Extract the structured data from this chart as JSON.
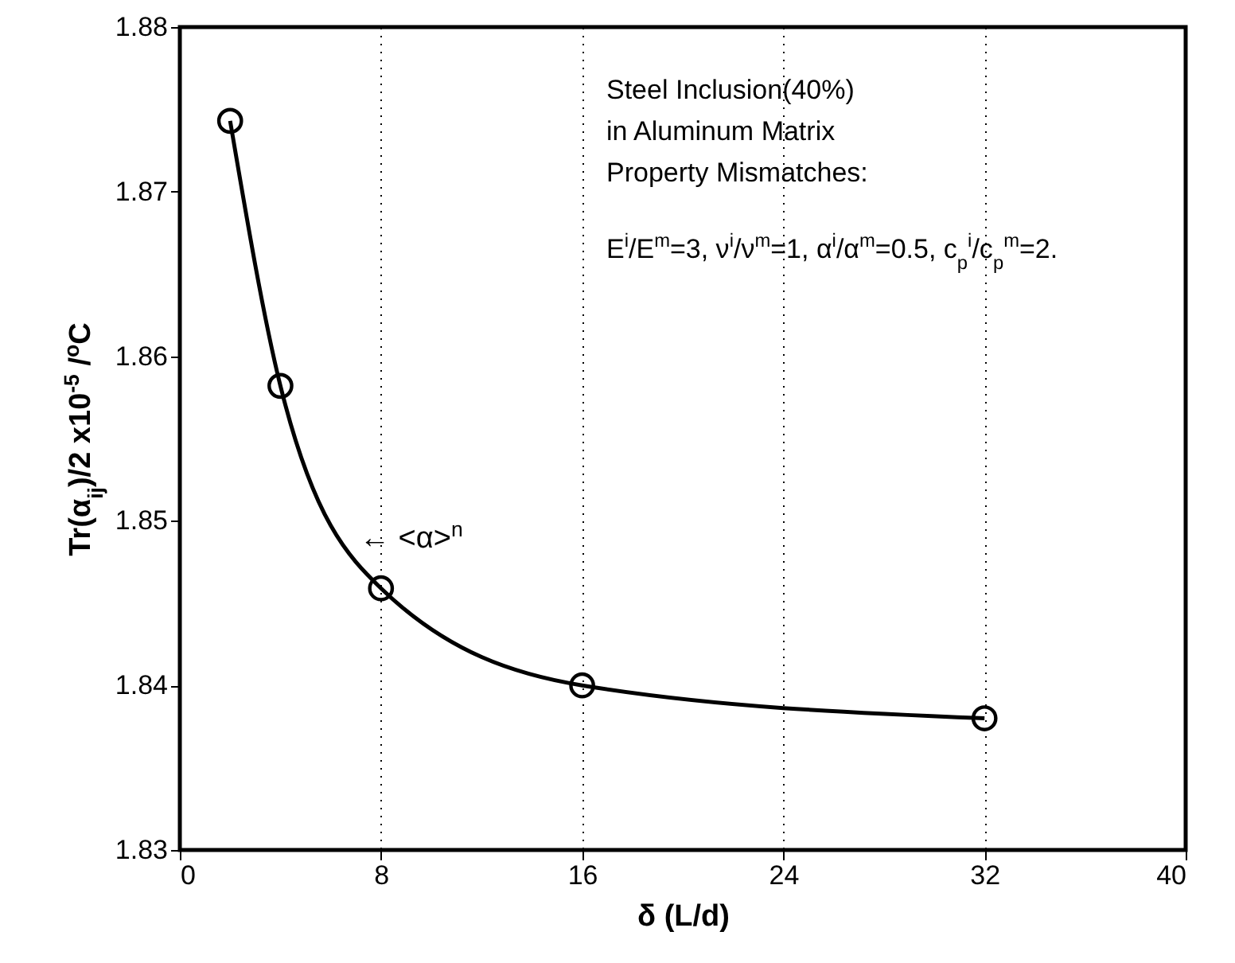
{
  "chart_data": {
    "type": "line",
    "xlabel": "δ (L/d)",
    "ylabel": "Tr(α$_{ij}$)/2 x10$^{-5}$ /$^{o}$C",
    "x": [
      2,
      4,
      8,
      16,
      32
    ],
    "series": [
      {
        "color": "#000000",
        "values": [
          1.8743,
          1.8582,
          1.8459,
          1.84,
          1.838
        ]
      }
    ],
    "xlim": [
      0,
      40
    ],
    "xticks": [
      0,
      8,
      16,
      24,
      32,
      40
    ],
    "ylim": [
      1.83,
      1.88
    ],
    "yticks": [
      1.83,
      1.84,
      1.85,
      1.86,
      1.87,
      1.88
    ],
    "grid": "x",
    "marker": "circle",
    "line_style": "solid",
    "annotations": [
      "← <α>$^{n}$",
      "Steel Inclusion(40%)",
      "in Aluminum Matrix",
      " Property Mismatches:",
      "E$^{i}$/E$^{m}$=3,  ν$^{i}$/ν$^{m}$=1,  α$^{i}$/α$^{m}$=0.5,  c$_{p}$$^{i}$/c$_{p}$$^{m}$=2."
    ]
  }
}
